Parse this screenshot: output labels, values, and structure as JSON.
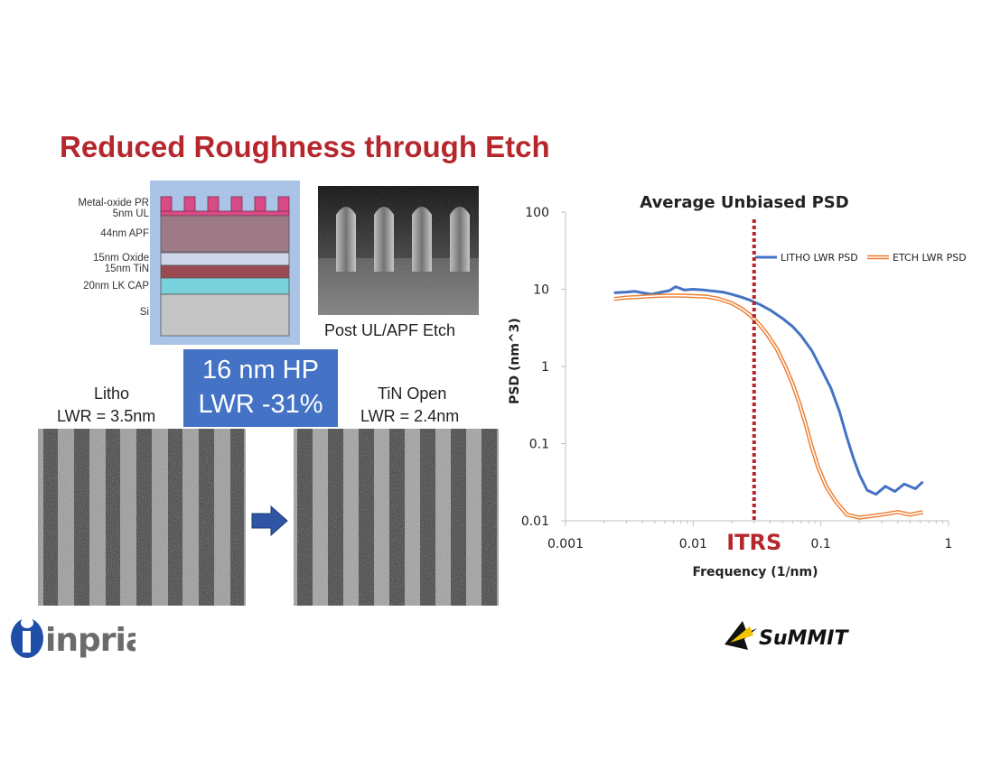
{
  "slide": {
    "title": "Reduced Roughness through Etch"
  },
  "stack": {
    "layers": [
      "Metal-oxide PR",
      "5nm UL",
      "44nm APF",
      "15nm Oxide",
      "15nm TiN",
      "20nm LK CAP",
      "Si"
    ],
    "colors": {
      "panel": "#a9c4e6",
      "pr": "#d94b86",
      "ul": "#c0c0d8",
      "apf": "#9e7a86",
      "oxide": "#cfd6ea",
      "tin": "#9b4a52",
      "lkcap": "#79d2dc",
      "si": "#c5c5c5"
    }
  },
  "sem_top": {
    "caption": "Post UL/APF Etch"
  },
  "highlight": {
    "line1": "16 nm HP",
    "line2": "LWR -31%",
    "color": "#4472c4"
  },
  "litho": {
    "title": "Litho",
    "lwr": "LWR = 3.5nm"
  },
  "tin_open": {
    "title": "TiN Open",
    "lwr": "LWR = 2.4nm"
  },
  "logos": {
    "inpria": "inpria",
    "summit": "SuMMIT"
  },
  "chart_data": {
    "type": "line",
    "title": "Average Unbiased PSD",
    "xlabel": "Frequency (1/nm)",
    "ylabel": "PSD (nm^3)",
    "x_scale": "log",
    "y_scale": "log",
    "xlim": [
      0.001,
      1
    ],
    "ylim": [
      0.01,
      100
    ],
    "x_ticks": [
      "0.001",
      "0.01",
      "0.1",
      "1"
    ],
    "y_ticks": [
      "100",
      "10",
      "1",
      "0.1",
      "0.01"
    ],
    "legend_placement": "top-right",
    "series": [
      {
        "name": "LITHO LWR PSD",
        "color": "#4472c4",
        "points": [
          [
            0.0024,
            9.0
          ],
          [
            0.003,
            9.2
          ],
          [
            0.0035,
            9.4
          ],
          [
            0.004,
            9.0
          ],
          [
            0.0047,
            8.6
          ],
          [
            0.0055,
            9.1
          ],
          [
            0.0065,
            9.6
          ],
          [
            0.0073,
            10.8
          ],
          [
            0.0085,
            9.8
          ],
          [
            0.01,
            10.0
          ],
          [
            0.012,
            9.8
          ],
          [
            0.014,
            9.5
          ],
          [
            0.017,
            9.2
          ],
          [
            0.02,
            8.6
          ],
          [
            0.024,
            7.9
          ],
          [
            0.028,
            7.2
          ],
          [
            0.033,
            6.4
          ],
          [
            0.04,
            5.4
          ],
          [
            0.05,
            4.2
          ],
          [
            0.06,
            3.3
          ],
          [
            0.07,
            2.5
          ],
          [
            0.085,
            1.6
          ],
          [
            0.1,
            0.95
          ],
          [
            0.12,
            0.52
          ],
          [
            0.14,
            0.26
          ],
          [
            0.16,
            0.12
          ],
          [
            0.18,
            0.065
          ],
          [
            0.2,
            0.04
          ],
          [
            0.23,
            0.025
          ],
          [
            0.27,
            0.022
          ],
          [
            0.32,
            0.028
          ],
          [
            0.38,
            0.024
          ],
          [
            0.45,
            0.03
          ],
          [
            0.55,
            0.026
          ],
          [
            0.63,
            0.032
          ]
        ]
      },
      {
        "name": "ETCH LWR PSD",
        "color": "#ed7d31",
        "points": [
          [
            0.0024,
            7.5
          ],
          [
            0.003,
            7.8
          ],
          [
            0.004,
            8.0
          ],
          [
            0.005,
            8.2
          ],
          [
            0.007,
            8.3
          ],
          [
            0.01,
            8.2
          ],
          [
            0.013,
            8.0
          ],
          [
            0.016,
            7.5
          ],
          [
            0.02,
            6.6
          ],
          [
            0.024,
            5.6
          ],
          [
            0.028,
            4.6
          ],
          [
            0.033,
            3.5
          ],
          [
            0.038,
            2.6
          ],
          [
            0.045,
            1.7
          ],
          [
            0.052,
            1.05
          ],
          [
            0.06,
            0.6
          ],
          [
            0.068,
            0.33
          ],
          [
            0.076,
            0.18
          ],
          [
            0.085,
            0.09
          ],
          [
            0.095,
            0.05
          ],
          [
            0.11,
            0.028
          ],
          [
            0.13,
            0.018
          ],
          [
            0.16,
            0.012
          ],
          [
            0.2,
            0.011
          ],
          [
            0.3,
            0.012
          ],
          [
            0.4,
            0.013
          ],
          [
            0.5,
            0.012
          ],
          [
            0.63,
            0.013
          ]
        ]
      }
    ],
    "annotation": {
      "label": "ITRS",
      "x": 0.03,
      "color": "#b5272d"
    }
  }
}
